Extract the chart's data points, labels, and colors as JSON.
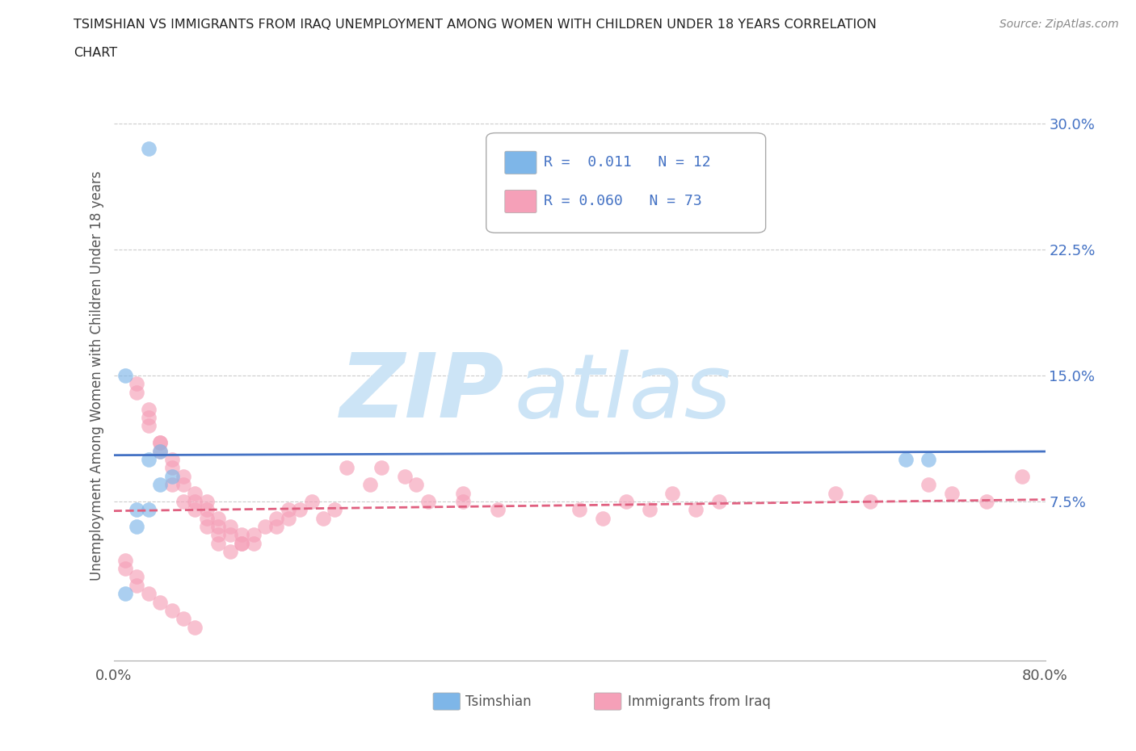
{
  "title_line1": "TSIMSHIAN VS IMMIGRANTS FROM IRAQ UNEMPLOYMENT AMONG WOMEN WITH CHILDREN UNDER 18 YEARS CORRELATION",
  "title_line2": "CHART",
  "source": "Source: ZipAtlas.com",
  "ylabel": "Unemployment Among Women with Children Under 18 years",
  "xlim": [
    0,
    0.8
  ],
  "ylim": [
    -0.02,
    0.32
  ],
  "grid_color": "#cccccc",
  "background_color": "#ffffff",
  "tsimshian_color": "#7EB6E8",
  "iraq_color": "#F5A0B8",
  "tsimshian_line_color": "#4472C4",
  "iraq_line_color": "#E06080",
  "legend_label1": "Tsimshian",
  "legend_label2": "Immigrants from Iraq",
  "R1": 0.011,
  "N1": 12,
  "R2": 0.06,
  "N2": 73,
  "tsimshian_x": [
    0.03,
    0.01,
    0.04,
    0.03,
    0.05,
    0.04,
    0.03,
    0.02,
    0.68,
    0.7,
    0.01,
    0.02
  ],
  "tsimshian_y": [
    0.285,
    0.15,
    0.105,
    0.1,
    0.09,
    0.085,
    0.07,
    0.07,
    0.1,
    0.1,
    0.02,
    0.06
  ],
  "iraq_x": [
    0.02,
    0.03,
    0.03,
    0.04,
    0.05,
    0.05,
    0.06,
    0.06,
    0.07,
    0.07,
    0.08,
    0.08,
    0.08,
    0.09,
    0.09,
    0.09,
    0.1,
    0.1,
    0.11,
    0.11,
    0.12,
    0.12,
    0.13,
    0.14,
    0.14,
    0.15,
    0.15,
    0.16,
    0.17,
    0.18,
    0.19,
    0.2,
    0.22,
    0.23,
    0.25,
    0.26,
    0.27,
    0.3,
    0.3,
    0.33,
    0.4,
    0.42,
    0.44,
    0.46,
    0.48,
    0.5,
    0.52,
    0.62,
    0.65,
    0.7,
    0.72,
    0.75,
    0.78,
    0.01,
    0.01,
    0.02,
    0.02,
    0.03,
    0.04,
    0.05,
    0.06,
    0.07,
    0.02,
    0.04,
    0.05,
    0.06,
    0.07,
    0.08,
    0.09,
    0.1,
    0.11,
    0.03,
    0.04
  ],
  "iraq_y": [
    0.145,
    0.13,
    0.12,
    0.11,
    0.1,
    0.085,
    0.09,
    0.075,
    0.08,
    0.07,
    0.075,
    0.065,
    0.06,
    0.065,
    0.055,
    0.05,
    0.06,
    0.045,
    0.055,
    0.05,
    0.055,
    0.05,
    0.06,
    0.065,
    0.06,
    0.07,
    0.065,
    0.07,
    0.075,
    0.065,
    0.07,
    0.095,
    0.085,
    0.095,
    0.09,
    0.085,
    0.075,
    0.08,
    0.075,
    0.07,
    0.07,
    0.065,
    0.075,
    0.07,
    0.08,
    0.07,
    0.075,
    0.08,
    0.075,
    0.085,
    0.08,
    0.075,
    0.09,
    0.04,
    0.035,
    0.03,
    0.025,
    0.02,
    0.015,
    0.01,
    0.005,
    0.0,
    0.14,
    0.11,
    0.095,
    0.085,
    0.075,
    0.07,
    0.06,
    0.055,
    0.05,
    0.125,
    0.105
  ]
}
